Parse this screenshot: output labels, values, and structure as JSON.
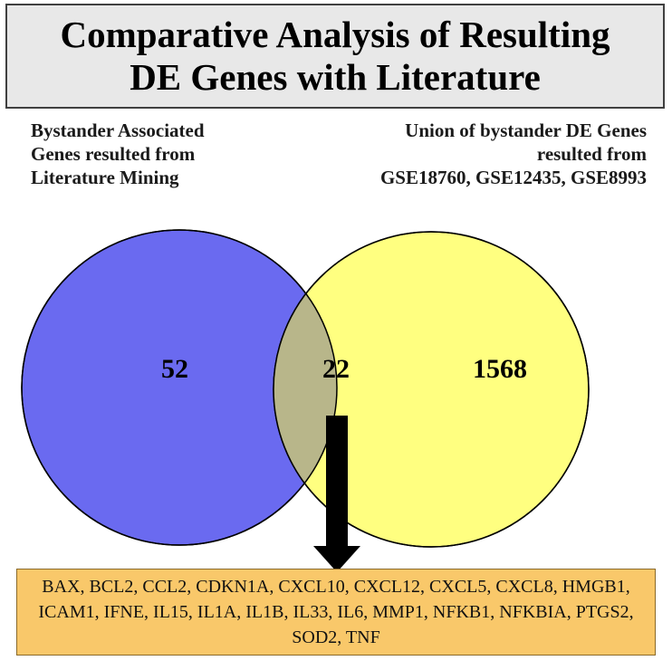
{
  "title": {
    "line1": "Comparative Analysis of Resulting",
    "line2": "DE Genes with Literature"
  },
  "left_set": {
    "label_lines": [
      "Bystander Associated",
      "Genes resulted from",
      "Literature Mining"
    ],
    "count": "52",
    "color": "#6a6af0"
  },
  "right_set": {
    "label_lines": [
      "Union of bystander DE Genes",
      "resulted from",
      "GSE18760, GSE12435, GSE8993"
    ],
    "count": "1568",
    "color": "#ffff80"
  },
  "intersection": {
    "count": "22",
    "color": "#b8b68a"
  },
  "overlap_genes": {
    "text": "BAX, BCL2, CCL2, CDKN1A, CXCL10, CXCL12, CXCL5, CXCL8, HMGB1, ICAM1, IFNE, IL15, IL1A, IL1B, IL33, IL6, MMP1, NFKB1, NFKBIA, PTGS2, SOD2, TNF",
    "box_color": "#f9c86a"
  }
}
